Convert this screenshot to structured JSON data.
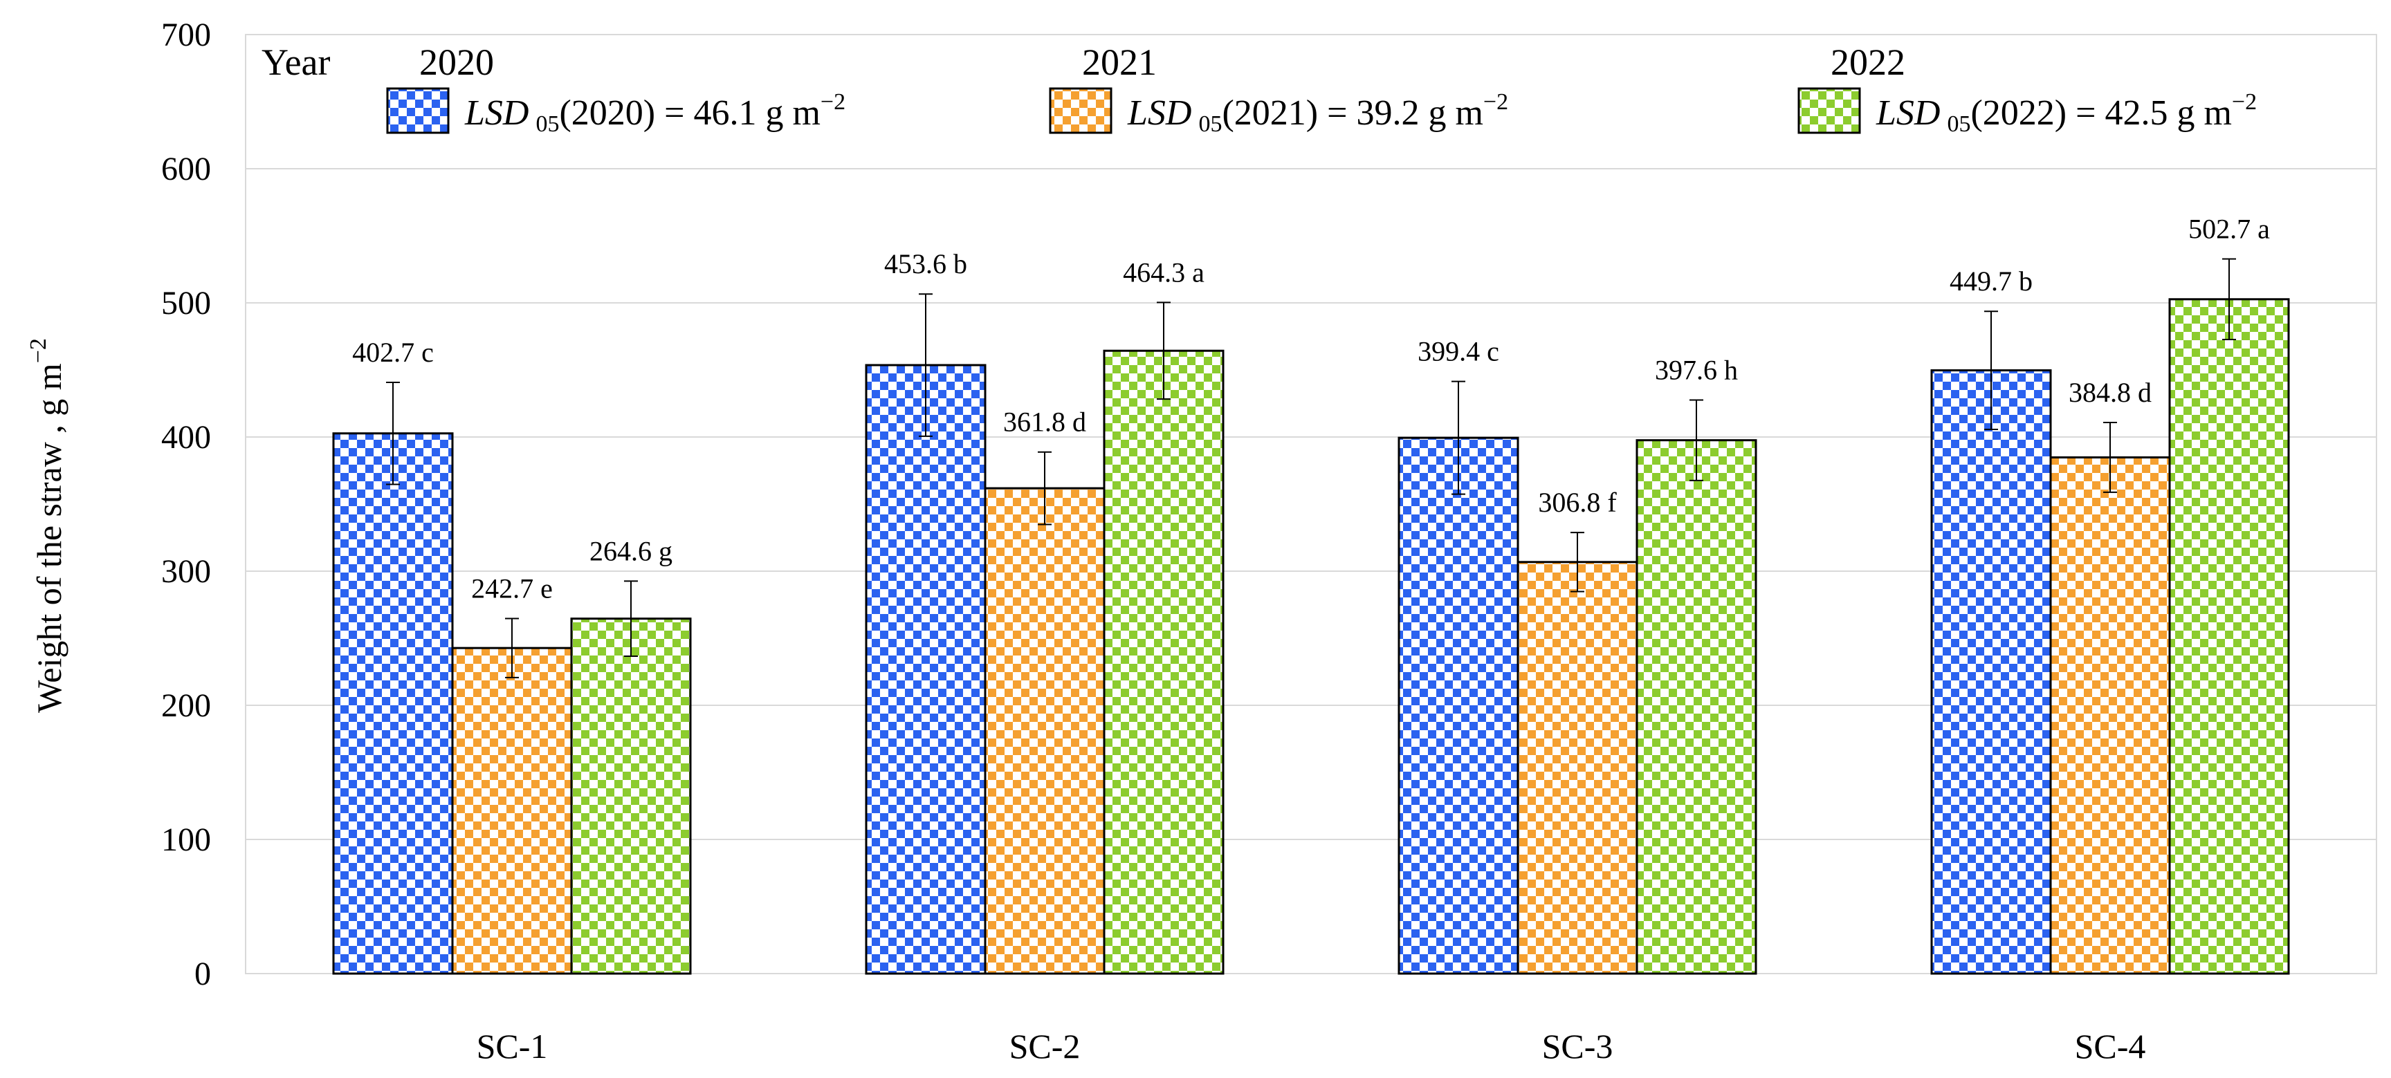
{
  "chart_data": {
    "type": "bar",
    "ylabel": "Weight of the straw , g m",
    "ylabel_sup": "−2",
    "ylim": [
      0,
      700
    ],
    "yticks": [
      0,
      100,
      200,
      300,
      400,
      500,
      600,
      700
    ],
    "grid": true,
    "legend_position": "top",
    "legend_title": "Year",
    "categories": [
      "SC-1",
      "SC-2",
      "SC-3",
      "SC-4"
    ],
    "series": [
      {
        "name": "2020",
        "color": "#2b62f0",
        "lsd_label": "(2020) = 46.1 g m",
        "values": [
          402.7,
          453.6,
          399.4,
          449.7
        ],
        "errors": [
          38,
          53,
          42,
          44
        ],
        "labels": [
          "402.7 c",
          "453.6 b",
          "399.4 c",
          "449.7 b"
        ]
      },
      {
        "name": "2021",
        "color": "#f5a030",
        "lsd_label": "(2021) = 39.2 g m",
        "values": [
          242.7,
          361.8,
          306.8,
          384.8
        ],
        "errors": [
          22,
          27,
          22,
          26
        ],
        "labels": [
          "242.7 e",
          "361.8 d",
          "306.8 f",
          "384.8 d"
        ]
      },
      {
        "name": "2022",
        "color": "#8ccc2e",
        "lsd_label": "(2022) = 42.5 g m",
        "values": [
          264.6,
          464.3,
          397.6,
          502.7
        ],
        "errors": [
          28,
          36,
          30,
          30
        ],
        "labels": [
          "264.6 g",
          "464.3 a",
          "397.6 h",
          "502.7 a"
        ]
      }
    ],
    "lsd_symbol": "LSD",
    "lsd_subscript": "05",
    "lsd_sup": "−2"
  }
}
